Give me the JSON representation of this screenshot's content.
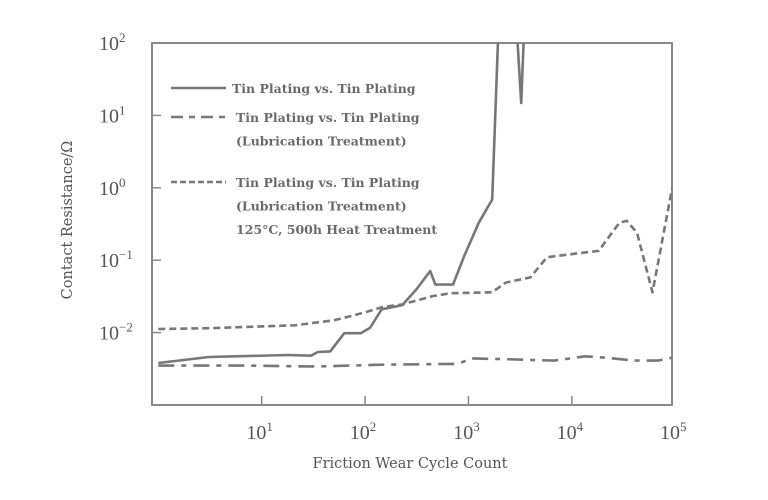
{
  "chart_data": {
    "type": "line",
    "title": "",
    "xlabel": "Friction Wear Cycle Count",
    "ylabel": "Contact Resistance/Ω",
    "xscale": "log",
    "yscale": "log",
    "xlim": [
      0.87,
      93000
    ],
    "ylim": [
      0.001,
      100
    ],
    "grid": false,
    "legend_position": "top-left",
    "line_color": "#777777",
    "x_ticks": [
      {
        "base": "10",
        "exp": "1",
        "value": 10
      },
      {
        "base": "10",
        "exp": "2",
        "value": 100
      },
      {
        "base": "10",
        "exp": "3",
        "value": 1000
      },
      {
        "base": "10",
        "exp": "4",
        "value": 10000
      },
      {
        "base": "10",
        "exp": "5",
        "value": 100000
      }
    ],
    "y_ticks": [
      {
        "base": "10",
        "exp": "−2",
        "value": 0.01
      },
      {
        "base": "10",
        "exp": "−1",
        "value": 0.1
      },
      {
        "base": "10",
        "exp": "0",
        "value": 1
      },
      {
        "base": "10",
        "exp": "1",
        "value": 10
      },
      {
        "base": "10",
        "exp": "2",
        "value": 100
      }
    ],
    "series": [
      {
        "name": "Tin Plating vs. Tin Plating",
        "legend_lines": [
          "Tin Plating vs. Tin Plating"
        ],
        "style": "solid",
        "x": [
          1,
          3.1,
          18,
          30,
          35,
          46,
          63,
          91,
          112,
          145,
          229,
          316,
          427,
          479,
          708,
          912,
          1259,
          1698,
          1995,
          2818,
          3236,
          3548
        ],
        "y": [
          0.0038,
          0.0046,
          0.0049,
          0.0048,
          0.0054,
          0.0055,
          0.0098,
          0.0098,
          0.0117,
          0.021,
          0.024,
          0.04,
          0.071,
          0.046,
          0.046,
          0.115,
          0.33,
          0.69,
          100,
          100,
          14.8,
          100
        ]
      },
      {
        "name": "Tin Plating vs. Tin Plating (Lubrication Treatment)",
        "legend_lines": [
          "Tin Plating vs. Tin Plating",
          "(Lubrication Treatment)"
        ],
        "style": "dash-dot",
        "x": [
          1,
          6.8,
          34,
          145,
          794,
          1072,
          2138,
          6761,
          13490,
          21380,
          39811,
          67608,
          93325
        ],
        "y": [
          0.0035,
          0.0035,
          0.0034,
          0.0036,
          0.0037,
          0.0044,
          0.0043,
          0.0041,
          0.0047,
          0.0045,
          0.0041,
          0.0041,
          0.0045
        ]
      },
      {
        "name": "Tin Plating vs. Tin Plating (Lubrication Treatment) 125°C, 500h Heat Treatment",
        "legend_lines": [
          "Tin Plating vs. Tin Plating",
          "(Lubrication Treatment)",
          "125°C, 500h Heat Treatment"
        ],
        "style": "short-dash",
        "x": [
          1,
          3.1,
          21,
          50,
          100,
          145,
          229,
          457,
          676,
          1698,
          2291,
          3981,
          5754,
          18197,
          28840,
          33884,
          42658,
          60256,
          93325
        ],
        "y": [
          0.0112,
          0.0115,
          0.0126,
          0.0148,
          0.019,
          0.0224,
          0.0245,
          0.032,
          0.035,
          0.036,
          0.049,
          0.058,
          0.11,
          0.135,
          0.33,
          0.35,
          0.24,
          0.036,
          1.0
        ]
      }
    ]
  }
}
